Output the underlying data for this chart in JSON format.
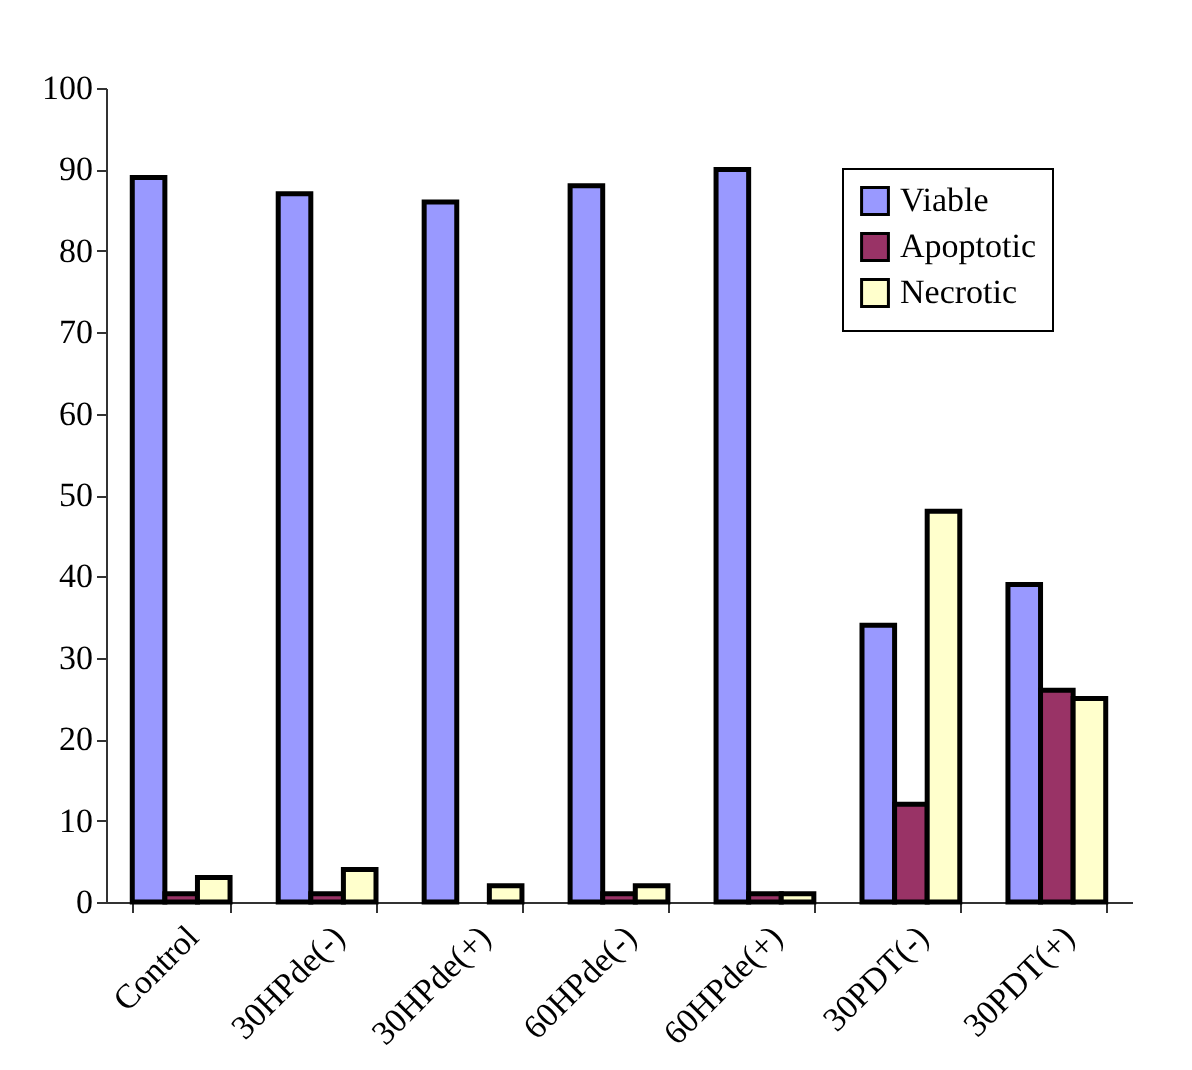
{
  "chart_data": {
    "type": "bar",
    "categories": [
      "Control",
      "30HPde(-)",
      "30HPde(+)",
      "60HPde(-)",
      "60HPde(+)",
      "30PDT(-)",
      "30PDT(+)"
    ],
    "series": [
      {
        "name": "Viable",
        "color": "#9999ff",
        "values": [
          89,
          87,
          86,
          88,
          90,
          34,
          39
        ]
      },
      {
        "name": "Apoptotic",
        "color": "#993366",
        "values": [
          1,
          1,
          null,
          1,
          1,
          12,
          26
        ]
      },
      {
        "name": "Necrotic",
        "color": "#ffffcc",
        "values": [
          3,
          4,
          2,
          2,
          1,
          48,
          25
        ]
      }
    ],
    "ylim": [
      0,
      100
    ],
    "yticks": [
      0,
      10,
      20,
      30,
      40,
      50,
      60,
      70,
      80,
      90,
      100
    ],
    "grid": false,
    "legend": "top right"
  }
}
